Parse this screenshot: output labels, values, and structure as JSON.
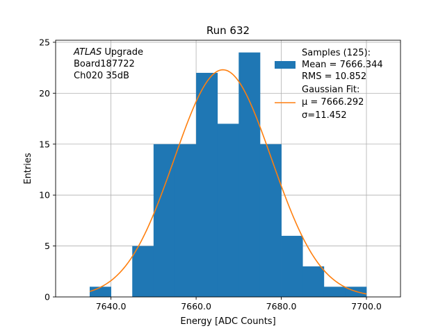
{
  "chart_data": {
    "type": "bar",
    "title": "Run 632",
    "xlabel": "Energy [ADC Counts]",
    "ylabel": "Entries",
    "xlim": [
      7627,
      7708
    ],
    "ylim": [
      0,
      25.2
    ],
    "grid": true,
    "x_ticks": [
      7640,
      7660,
      7680,
      7700
    ],
    "x_tick_labels": [
      "7640.0",
      "7660.0",
      "7680.0",
      "7700.0"
    ],
    "y_ticks": [
      0,
      5,
      10,
      15,
      20,
      25
    ],
    "y_tick_labels": [
      "0",
      "5",
      "10",
      "15",
      "20",
      "25"
    ],
    "histogram": {
      "bin_edges": [
        7635,
        7640,
        7645,
        7650,
        7655,
        7660,
        7665,
        7670,
        7675,
        7680,
        7685,
        7690,
        7695,
        7700
      ],
      "counts": [
        1,
        0,
        5,
        15,
        15,
        22,
        17,
        24,
        15,
        6,
        3,
        1,
        1
      ],
      "color": "#1f77b4"
    },
    "fit": {
      "mu": 7666.292,
      "sigma": 11.452,
      "amplitude": 22.3,
      "x_range": [
        7635,
        7700
      ],
      "color": "#ff7f0e"
    },
    "annotation": {
      "italic": "ATLAS",
      "line1_rest": " Upgrade",
      "line2": " Board187722",
      "line3": " Ch020 35dB"
    },
    "legend": {
      "placement": "top-right",
      "samples_lines": [
        "Samples (125):",
        " Mean = 7666.344",
        " RMS = 10.852"
      ],
      "fit_lines": [
        "Gaussian Fit:",
        " μ = 7666.292",
        " σ=11.452"
      ]
    }
  }
}
